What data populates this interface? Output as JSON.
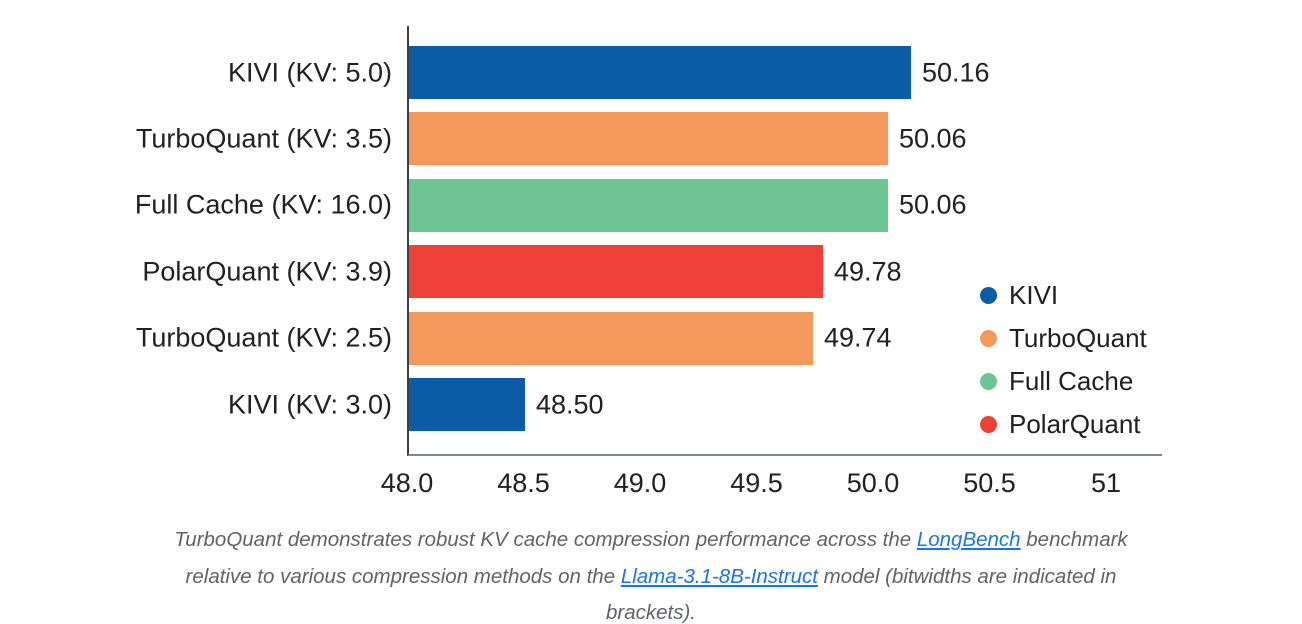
{
  "chart_data": {
    "type": "bar",
    "orientation": "horizontal",
    "categories": [
      "KIVI (KV: 5.0)",
      "TurboQuant (KV: 3.5)",
      "Full Cache (KV: 16.0)",
      "PolarQuant (KV: 3.9)",
      "TurboQuant (KV: 2.5)",
      "KIVI (KV: 3.0)"
    ],
    "values": [
      50.16,
      50.06,
      50.06,
      49.78,
      49.74,
      48.5
    ],
    "value_labels": [
      "50.16",
      "50.06",
      "50.06",
      "49.78",
      "49.74",
      "48.50"
    ],
    "bar_colors": [
      "#0b5ba7",
      "#f4995c",
      "#6cc593",
      "#ee4037",
      "#f4995c",
      "#0b5ba7"
    ],
    "xlim": [
      48.0,
      51.24
    ],
    "x_ticks": [
      {
        "value": 48.0,
        "label": "48.0"
      },
      {
        "value": 48.5,
        "label": "48.5"
      },
      {
        "value": 49.0,
        "label": "49.0"
      },
      {
        "value": 49.5,
        "label": "49.5"
      },
      {
        "value": 50.0,
        "label": "50.0"
      },
      {
        "value": 50.5,
        "label": "50.5"
      },
      {
        "value": 51.0,
        "label": "51"
      }
    ],
    "grid": false,
    "legend_position": "right",
    "legend": [
      {
        "name": "KIVI",
        "color": "#0b5ba7"
      },
      {
        "name": "TurboQuant",
        "color": "#f4995c"
      },
      {
        "name": "Full Cache",
        "color": "#6cc593"
      },
      {
        "name": "PolarQuant",
        "color": "#ee4037"
      }
    ],
    "title": "",
    "xlabel": "",
    "ylabel": ""
  },
  "caption": {
    "lines": [
      [
        {
          "text": "TurboQuant demonstrates robust KV cache compression performance across the "
        },
        {
          "text": "LongBench",
          "link": true
        },
        {
          "text": " benchmark"
        }
      ],
      [
        {
          "text": "relative to various compression methods on the "
        },
        {
          "text": "Llama-3.1-8B-Instruct",
          "link": true
        },
        {
          "text": " model (bitwidths are indicated in"
        }
      ],
      [
        {
          "text": "brackets)."
        }
      ]
    ]
  },
  "colors": {
    "axis_vertical": "#3c4043",
    "axis_horizontal": "#80868b",
    "text": "#202124",
    "caption_text": "#5f6368",
    "link": "#1a73e8",
    "background": "#ffffff"
  }
}
